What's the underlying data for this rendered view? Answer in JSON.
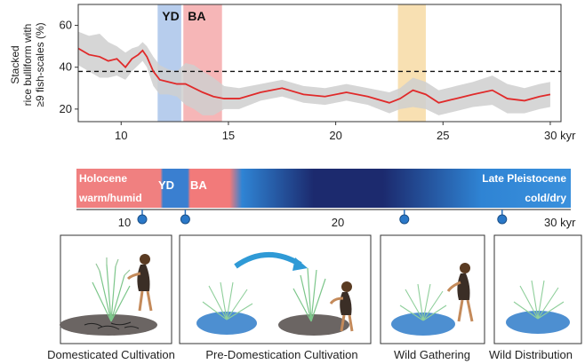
{
  "chart_data": {
    "type": "line",
    "title": "",
    "ylabel_lines": [
      "Stacked",
      "rice bulliform with",
      "≥9 fish-scales (%)"
    ],
    "xlabel": "",
    "x_unit_label": "30 kyr",
    "xlim": [
      8,
      30.5
    ],
    "ylim": [
      14,
      70
    ],
    "xticks": [
      10,
      15,
      20,
      25,
      30
    ],
    "xtick_labels": [
      "10",
      "15",
      "20",
      "25",
      "30"
    ],
    "yticks": [
      20,
      40,
      60
    ],
    "ytick_labels": [
      "20",
      "40",
      "60"
    ],
    "threshold": 38,
    "periods": [
      {
        "label": "YD",
        "start": 11.7,
        "end": 12.8,
        "color": "#aac4ea"
      },
      {
        "label": "BA",
        "start": 12.9,
        "end": 14.7,
        "color": "#f4a9aa"
      },
      {
        "label": "",
        "start": 22.9,
        "end": 24.2,
        "color": "#f7dba5"
      }
    ],
    "series": [
      {
        "color": "#e02a2a",
        "band_color": "#cfcfcf",
        "points": [
          {
            "x": 8.0,
            "y": 49,
            "lo": 41,
            "hi": 57
          },
          {
            "x": 8.5,
            "y": 46,
            "lo": 38,
            "hi": 55
          },
          {
            "x": 9.0,
            "y": 45,
            "lo": 35,
            "hi": 56
          },
          {
            "x": 9.4,
            "y": 43,
            "lo": 35,
            "hi": 52
          },
          {
            "x": 9.8,
            "y": 44,
            "lo": 36,
            "hi": 50
          },
          {
            "x": 10.2,
            "y": 40,
            "lo": 34,
            "hi": 47
          },
          {
            "x": 10.5,
            "y": 44,
            "lo": 38,
            "hi": 49
          },
          {
            "x": 10.8,
            "y": 46,
            "lo": 41,
            "hi": 50
          },
          {
            "x": 11.0,
            "y": 48,
            "lo": 43,
            "hi": 52
          },
          {
            "x": 11.2,
            "y": 45,
            "lo": 40,
            "hi": 50
          },
          {
            "x": 11.5,
            "y": 38,
            "lo": 31,
            "hi": 45
          },
          {
            "x": 11.8,
            "y": 34,
            "lo": 27,
            "hi": 41
          },
          {
            "x": 12.2,
            "y": 33,
            "lo": 27,
            "hi": 39
          },
          {
            "x": 12.6,
            "y": 32,
            "lo": 26,
            "hi": 38
          },
          {
            "x": 13.0,
            "y": 32,
            "lo": 22,
            "hi": 42
          },
          {
            "x": 13.4,
            "y": 30,
            "lo": 20,
            "hi": 41
          },
          {
            "x": 13.8,
            "y": 28,
            "lo": 17,
            "hi": 38
          },
          {
            "x": 14.3,
            "y": 26,
            "lo": 17,
            "hi": 35
          },
          {
            "x": 14.8,
            "y": 25,
            "lo": 20,
            "hi": 31
          },
          {
            "x": 15.5,
            "y": 25,
            "lo": 20,
            "hi": 30
          },
          {
            "x": 16.5,
            "y": 28,
            "lo": 24,
            "hi": 32
          },
          {
            "x": 17.5,
            "y": 30,
            "lo": 26,
            "hi": 34
          },
          {
            "x": 18.5,
            "y": 27,
            "lo": 23,
            "hi": 31
          },
          {
            "x": 19.5,
            "y": 26,
            "lo": 22,
            "hi": 30
          },
          {
            "x": 20.5,
            "y": 28,
            "lo": 24,
            "hi": 32
          },
          {
            "x": 21.5,
            "y": 26,
            "lo": 22,
            "hi": 30
          },
          {
            "x": 22.5,
            "y": 23,
            "lo": 18,
            "hi": 28
          },
          {
            "x": 23.0,
            "y": 25,
            "lo": 20,
            "hi": 30
          },
          {
            "x": 23.6,
            "y": 29,
            "lo": 21,
            "hi": 35
          },
          {
            "x": 24.2,
            "y": 27,
            "lo": 20,
            "hi": 33
          },
          {
            "x": 24.8,
            "y": 23,
            "lo": 17,
            "hi": 29
          },
          {
            "x": 25.6,
            "y": 25,
            "lo": 19,
            "hi": 31
          },
          {
            "x": 26.4,
            "y": 27,
            "lo": 21,
            "hi": 33
          },
          {
            "x": 27.3,
            "y": 29,
            "lo": 22,
            "hi": 36
          },
          {
            "x": 28.0,
            "y": 25,
            "lo": 18,
            "hi": 32
          },
          {
            "x": 28.8,
            "y": 24,
            "lo": 18,
            "hi": 30
          },
          {
            "x": 29.5,
            "y": 26,
            "lo": 20,
            "hi": 32
          },
          {
            "x": 30.0,
            "y": 27,
            "lo": 21,
            "hi": 33
          }
        ]
      }
    ]
  },
  "timeline": {
    "label_holocene": "Holocene",
    "label_warm": "warm/humid",
    "label_yd": "YD",
    "label_ba": "BA",
    "label_late_pleistocene": "Late Pleistocene",
    "label_cold": "cold/dry",
    "tick_10": "10",
    "tick_20": "20",
    "tick_30": "30 kyr",
    "colors": {
      "holocene": "#f08080",
      "yd": "#3a7fd0",
      "ba": "#f27a7a",
      "dark": "#1c2a6e",
      "blue": "#2f84d4"
    },
    "markers": [
      {
        "kyr": 10
      },
      {
        "kyr": 12.2
      },
      {
        "kyr": 23.4
      },
      {
        "kyr": 28.4
      }
    ]
  },
  "panels": {
    "captions": [
      "Domesticated Cultivation",
      "Pre-Domestication Cultivation",
      "Wild Gathering",
      "Wild Distribution"
    ]
  }
}
